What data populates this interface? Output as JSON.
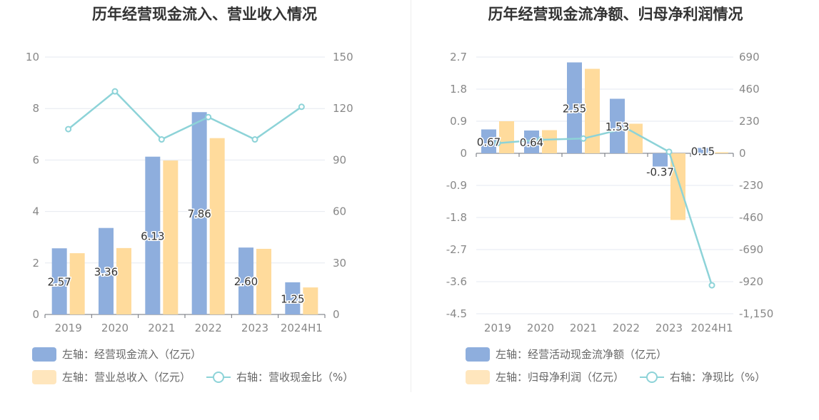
{
  "colors": {
    "bar_primary": "#8eaedd",
    "bar_secondary": "#ffdb9c",
    "line": "#8dd3d8",
    "grid": "#e6e9f0",
    "axis_text": "#888888"
  },
  "charts": [
    {
      "title": "历年经营现金流入、营业收入情况",
      "legend": [
        {
          "label": "左轴：经营现金流入（亿元）",
          "kind": "bar",
          "color": "#8eaedd"
        },
        {
          "label": "左轴：营业总收入（亿元）",
          "kind": "bar",
          "color": "#ffdb9c"
        },
        {
          "label": "右轴：营收现金比（%）",
          "kind": "line",
          "color": "#8dd3d8"
        }
      ],
      "left_ticks": [
        "10",
        "8",
        "6",
        "4",
        "2",
        "0"
      ],
      "right_ticks": [
        "150",
        "120",
        "90",
        "60",
        "30",
        "0"
      ],
      "categories": [
        "2019",
        "2020",
        "2021",
        "2022",
        "2023",
        "2024H1"
      ],
      "bar_labels": [
        "2.57",
        "3.36",
        "6.13",
        "7.86",
        "2.60",
        "1.25"
      ]
    },
    {
      "title": "历年经营现金流净额、归母净利润情况",
      "legend": [
        {
          "label": "左轴：经营活动现金流净额（亿元）",
          "kind": "bar",
          "color": "#8eaedd"
        },
        {
          "label": "左轴：归母净利润（亿元）",
          "kind": "bar",
          "color": "#ffdb9c"
        },
        {
          "label": "右轴：净现比（%）",
          "kind": "line",
          "color": "#8dd3d8"
        }
      ],
      "left_ticks": [
        "2.7",
        "1.8",
        "0.9",
        "0",
        "-0.9",
        "-1.8",
        "-2.7",
        "-3.6",
        "-4.5"
      ],
      "right_ticks": [
        "690",
        "460",
        "230",
        "0",
        "-230",
        "-460",
        "-690",
        "-920",
        "-1,150"
      ],
      "categories": [
        "2019",
        "2020",
        "2021",
        "2022",
        "2023",
        "2024H1"
      ],
      "bar_labels": [
        "0.67",
        "0.64",
        "2.55",
        "1.53",
        "-0.37",
        "0.15"
      ]
    }
  ],
  "chart_data": [
    {
      "type": "bar",
      "title": "历年经营现金流入、营业收入情况",
      "categories": [
        "2019",
        "2020",
        "2021",
        "2022",
        "2023",
        "2024H1"
      ],
      "left_axis": {
        "min": 0,
        "max": 10
      },
      "right_axis": {
        "min": 0,
        "max": 150
      },
      "series": [
        {
          "name": "左轴：经营现金流入（亿元）",
          "type": "bar",
          "axis": "left",
          "values": [
            2.57,
            3.36,
            6.13,
            7.86,
            2.6,
            1.25
          ]
        },
        {
          "name": "左轴：营业总收入（亿元）",
          "type": "bar",
          "axis": "left",
          "values": [
            2.38,
            2.58,
            5.98,
            6.85,
            2.55,
            1.05
          ]
        },
        {
          "name": "右轴：营收现金比（%）",
          "type": "line",
          "axis": "right",
          "values": [
            108,
            130,
            102,
            115,
            102,
            121
          ]
        }
      ],
      "grid": true,
      "legend_position": "bottom-left"
    },
    {
      "type": "bar",
      "title": "历年经营现金流净额、归母净利润情况",
      "categories": [
        "2019",
        "2020",
        "2021",
        "2022",
        "2023",
        "2024H1"
      ],
      "left_axis": {
        "min": -4.5,
        "max": 2.7
      },
      "right_axis": {
        "min": -1150,
        "max": 690
      },
      "series": [
        {
          "name": "左轴：经营活动现金流净额（亿元）",
          "type": "bar",
          "axis": "left",
          "values": [
            0.67,
            0.64,
            2.55,
            1.53,
            -0.37,
            0.15
          ]
        },
        {
          "name": "左轴：归母净利润（亿元）",
          "type": "bar",
          "axis": "left",
          "values": [
            0.9,
            0.65,
            2.37,
            0.83,
            -1.87,
            0.03
          ]
        },
        {
          "name": "右轴：净现比（%）",
          "type": "line",
          "axis": "right",
          "values": [
            73,
            97,
            106,
            180,
            11,
            -946
          ]
        }
      ],
      "grid": true,
      "legend_position": "bottom-left"
    }
  ]
}
